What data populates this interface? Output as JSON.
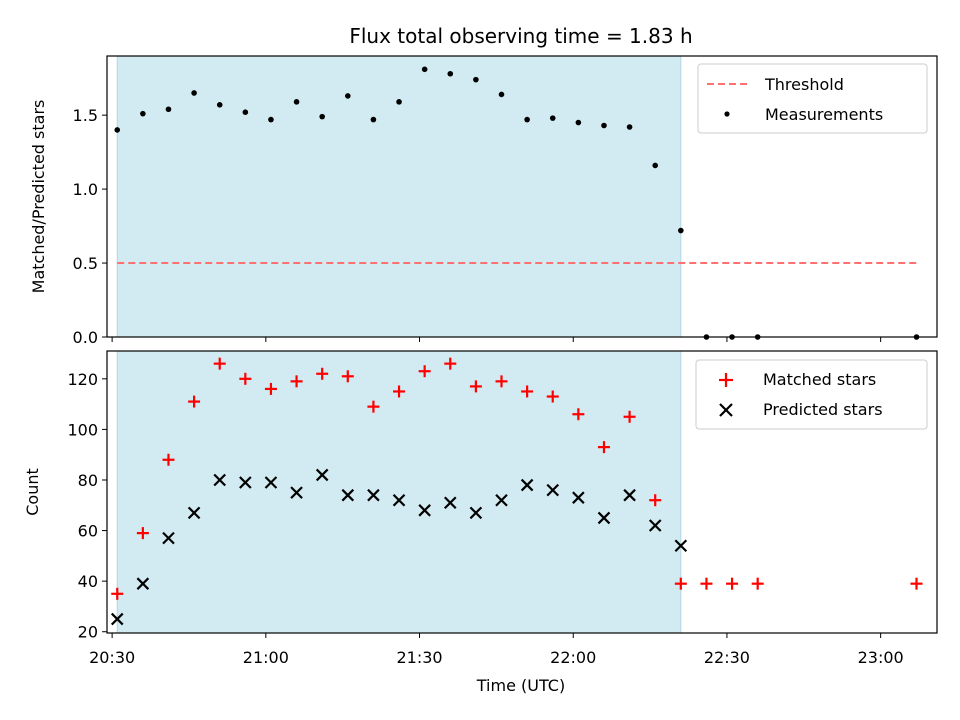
{
  "chart_data": [
    {
      "type": "scatter",
      "title": "Flux total observing time = 1.83 h",
      "xlabel": "",
      "ylabel": "Matched/Predicted stars",
      "xlim": [
        "20:29",
        "23:11"
      ],
      "ylim": [
        0,
        1.9
      ],
      "yticks": [
        0.0,
        0.5,
        1.0,
        1.5
      ],
      "ytick_labels": [
        "0.0",
        "0.5",
        "1.0",
        "1.5"
      ],
      "shaded_region": {
        "start": "20:31",
        "end": "22:21",
        "color": "#add8e6"
      },
      "legend_position": "upper right",
      "threshold": {
        "name": "Threshold",
        "value": 0.5,
        "start": "20:31",
        "end": "23:07",
        "color": "#ff7070"
      },
      "series": [
        {
          "name": "Measurements",
          "color": "#000000",
          "marker": "dot",
          "x": [
            "20:31",
            "20:36",
            "20:41",
            "20:46",
            "20:51",
            "20:56",
            "21:01",
            "21:06",
            "21:11",
            "21:16",
            "21:21",
            "21:26",
            "21:31",
            "21:36",
            "21:41",
            "21:46",
            "21:51",
            "21:56",
            "22:01",
            "22:06",
            "22:11",
            "22:16",
            "22:21",
            "22:26",
            "22:31",
            "22:36",
            "23:07"
          ],
          "y": [
            1.4,
            1.51,
            1.54,
            1.65,
            1.57,
            1.52,
            1.47,
            1.59,
            1.49,
            1.63,
            1.47,
            1.59,
            1.81,
            1.78,
            1.74,
            1.64,
            1.47,
            1.48,
            1.45,
            1.43,
            1.42,
            1.16,
            0.72,
            0.0,
            0.0,
            0.0,
            0.0
          ]
        }
      ]
    },
    {
      "type": "scatter",
      "title": "",
      "xlabel": "Time (UTC)",
      "ylabel": "Count",
      "xlim": [
        "20:29",
        "23:11"
      ],
      "ylim": [
        19.5,
        131
      ],
      "yticks": [
        20,
        40,
        60,
        80,
        100,
        120
      ],
      "ytick_labels": [
        "20",
        "40",
        "60",
        "80",
        "100",
        "120"
      ],
      "xticks": [
        "20:30",
        "21:00",
        "21:30",
        "22:00",
        "22:30",
        "23:00"
      ],
      "shaded_region": {
        "start": "20:31",
        "end": "22:21",
        "color": "#add8e6"
      },
      "legend_position": "upper right",
      "series": [
        {
          "name": "Matched stars",
          "color": "#ff0000",
          "marker": "plus",
          "x": [
            "20:31",
            "20:36",
            "20:41",
            "20:46",
            "20:51",
            "20:56",
            "21:01",
            "21:06",
            "21:11",
            "21:16",
            "21:21",
            "21:26",
            "21:31",
            "21:36",
            "21:41",
            "21:46",
            "21:51",
            "21:56",
            "22:01",
            "22:06",
            "22:11",
            "22:16",
            "22:21",
            "22:26",
            "22:31",
            "22:36",
            "23:07"
          ],
          "y": [
            35,
            59,
            88,
            111,
            126,
            120,
            116,
            119,
            122,
            121,
            109,
            115,
            123,
            126,
            117,
            119,
            115,
            113,
            106,
            93,
            105,
            72,
            39,
            39,
            39,
            39,
            39
          ]
        },
        {
          "name": "Predicted stars",
          "color": "#000000",
          "marker": "x",
          "x": [
            "20:31",
            "20:36",
            "20:41",
            "20:46",
            "20:51",
            "20:56",
            "21:01",
            "21:06",
            "21:11",
            "21:16",
            "21:21",
            "21:26",
            "21:31",
            "21:36",
            "21:41",
            "21:46",
            "21:51",
            "21:56",
            "22:01",
            "22:06",
            "22:11",
            "22:16",
            "22:21"
          ],
          "y": [
            25,
            39,
            57,
            67,
            80,
            79,
            79,
            75,
            82,
            74,
            74,
            72,
            68,
            71,
            67,
            72,
            78,
            76,
            73,
            65,
            74,
            62,
            54
          ]
        }
      ]
    }
  ]
}
